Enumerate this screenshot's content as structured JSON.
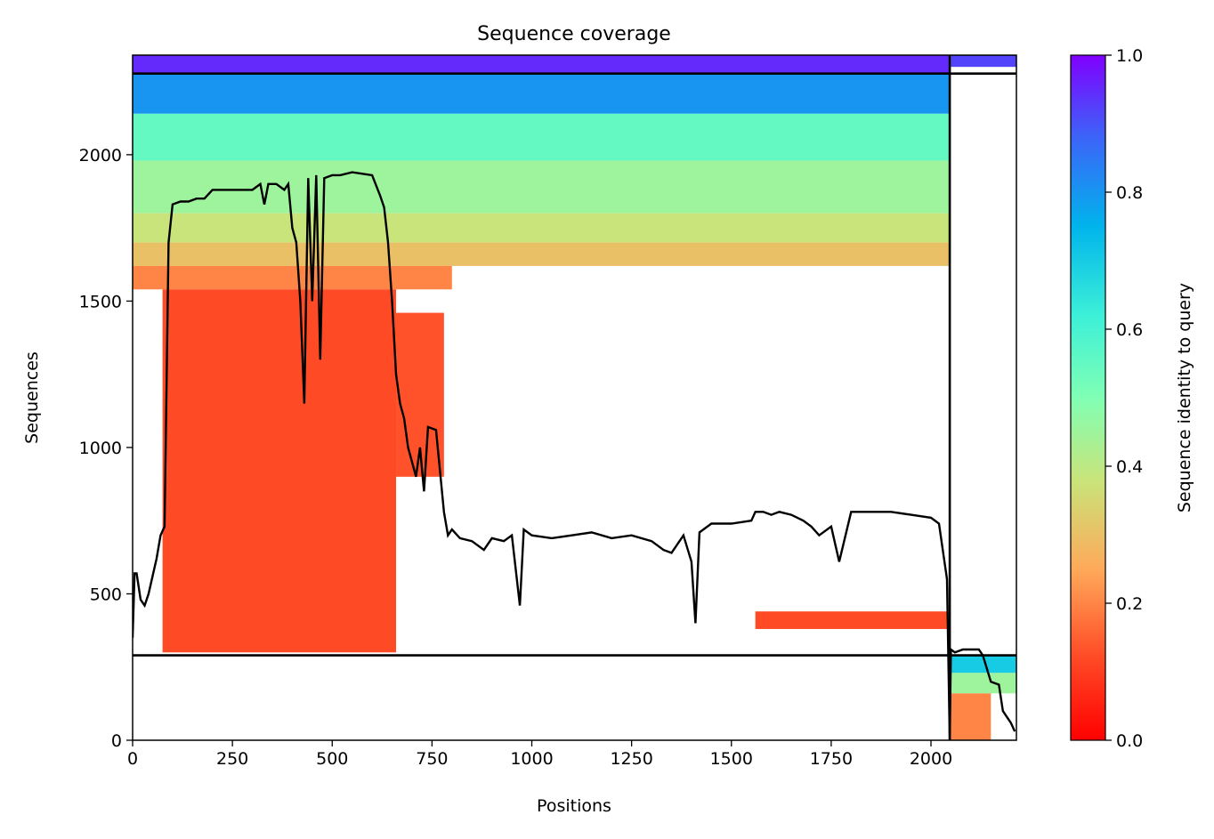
{
  "chart_data": {
    "type": "heatmap",
    "title": "Sequence coverage",
    "xlabel": "Positions",
    "ylabel": "Sequences",
    "xlim": [
      0,
      2214
    ],
    "ylim": [
      0,
      2340
    ],
    "xticks": [
      0,
      250,
      500,
      750,
      1000,
      1250,
      1500,
      1750,
      2000
    ],
    "yticks": [
      0,
      500,
      1000,
      1500,
      2000
    ],
    "colorbar": {
      "label": "Sequence identity to query",
      "range": [
        0.0,
        1.0
      ],
      "ticks": [
        0.0,
        0.2,
        0.4,
        0.6,
        0.8,
        1.0
      ],
      "tick_labels": [
        "0.0",
        "0.2",
        "0.4",
        "0.6",
        "0.8",
        "1.0"
      ],
      "colormap": "rainbow_r"
    },
    "chain_boundaries": {
      "x": [
        2047
      ],
      "y": [
        290,
        2277
      ]
    },
    "coverage_blocks": [
      {
        "x0": 0,
        "x1": 2047,
        "y0": 2277,
        "y1": 2340,
        "identity": 0.95
      },
      {
        "x0": 0,
        "x1": 2047,
        "y0": 2140,
        "y1": 2277,
        "identity": 0.8
      },
      {
        "x0": 0,
        "x1": 2047,
        "y0": 1980,
        "y1": 2140,
        "identity": 0.55
      },
      {
        "x0": 0,
        "x1": 2047,
        "y0": 1800,
        "y1": 1980,
        "identity": 0.45
      },
      {
        "x0": 0,
        "x1": 2047,
        "y0": 1700,
        "y1": 1800,
        "identity": 0.38
      },
      {
        "x0": 0,
        "x1": 2047,
        "y0": 1620,
        "y1": 1700,
        "identity": 0.3
      },
      {
        "x0": 0,
        "x1": 800,
        "y0": 1540,
        "y1": 1620,
        "identity": 0.2
      },
      {
        "x0": 75,
        "x1": 660,
        "y0": 300,
        "y1": 1540,
        "identity": 0.12
      },
      {
        "x0": 660,
        "x1": 780,
        "y0": 900,
        "y1": 1460,
        "identity": 0.13
      },
      {
        "x0": 1560,
        "x1": 2040,
        "y0": 380,
        "y1": 440,
        "identity": 0.12
      },
      {
        "x0": 2050,
        "x1": 2214,
        "y0": 2300,
        "y1": 2340,
        "identity": 0.92
      },
      {
        "x0": 2050,
        "x1": 2214,
        "y0": 230,
        "y1": 290,
        "identity": 0.7
      },
      {
        "x0": 2050,
        "x1": 2214,
        "y0": 160,
        "y1": 230,
        "identity": 0.45
      },
      {
        "x0": 2050,
        "x1": 2150,
        "y0": 0,
        "y1": 160,
        "identity": 0.2
      }
    ],
    "coverage_line": {
      "x": [
        0,
        5,
        10,
        20,
        30,
        40,
        50,
        60,
        70,
        80,
        90,
        100,
        120,
        140,
        160,
        180,
        200,
        250,
        300,
        320,
        330,
        340,
        360,
        380,
        390,
        400,
        410,
        420,
        430,
        440,
        450,
        460,
        470,
        480,
        500,
        520,
        550,
        600,
        620,
        630,
        640,
        650,
        660,
        670,
        680,
        690,
        700,
        710,
        720,
        730,
        740,
        760,
        780,
        790,
        800,
        820,
        850,
        880,
        900,
        930,
        950,
        970,
        980,
        1000,
        1050,
        1100,
        1150,
        1200,
        1250,
        1300,
        1330,
        1350,
        1380,
        1400,
        1410,
        1420,
        1450,
        1500,
        1550,
        1560,
        1580,
        1600,
        1620,
        1650,
        1680,
        1700,
        1720,
        1750,
        1770,
        1800,
        1820,
        1850,
        1900,
        1950,
        2000,
        2020,
        2040,
        2047,
        2050,
        2060,
        2080,
        2100,
        2120,
        2130,
        2150,
        2170,
        2180,
        2190,
        2200,
        2210
      ],
      "y": [
        350,
        570,
        570,
        480,
        460,
        500,
        560,
        620,
        700,
        730,
        1700,
        1830,
        1840,
        1840,
        1850,
        1850,
        1880,
        1880,
        1880,
        1900,
        1830,
        1900,
        1900,
        1880,
        1900,
        1750,
        1700,
        1500,
        1150,
        1920,
        1500,
        1930,
        1300,
        1920,
        1930,
        1930,
        1940,
        1930,
        1860,
        1820,
        1700,
        1500,
        1250,
        1150,
        1100,
        1000,
        950,
        900,
        1000,
        850,
        1070,
        1060,
        780,
        700,
        720,
        690,
        680,
        650,
        690,
        680,
        700,
        460,
        720,
        700,
        690,
        700,
        710,
        690,
        700,
        680,
        650,
        640,
        700,
        610,
        400,
        710,
        740,
        740,
        750,
        780,
        780,
        770,
        780,
        770,
        750,
        730,
        700,
        730,
        610,
        780,
        780,
        780,
        780,
        770,
        760,
        740,
        550,
        0,
        310,
        300,
        310,
        310,
        310,
        290,
        200,
        190,
        100,
        80,
        60,
        30
      ]
    }
  }
}
